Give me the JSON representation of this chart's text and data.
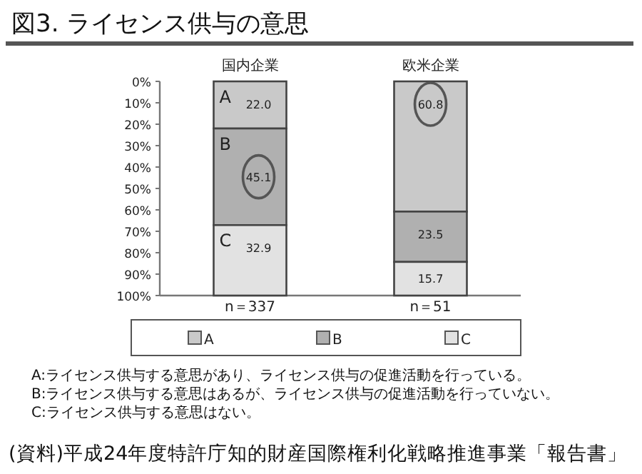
{
  "chart_data": {
    "type": "bar",
    "stacked": true,
    "title": "図3. ライセンス供与の意思",
    "categories": [
      "国内企業",
      "欧米企業"
    ],
    "series": [
      {
        "name": "A",
        "color": "#c9c9c9",
        "values": [
          22.0,
          60.8
        ],
        "value_labels": [
          "22.0",
          "60.8"
        ]
      },
      {
        "name": "B",
        "color": "#b0b0b0",
        "values": [
          45.1,
          23.5
        ],
        "value_labels": [
          "45.1",
          "23.5"
        ]
      },
      {
        "name": "C",
        "color": "#e2e2e2",
        "values": [
          32.9,
          15.7
        ],
        "value_labels": [
          "32.9",
          "15.7"
        ]
      }
    ],
    "ylim": [
      100,
      0
    ],
    "yticks": [
      {
        "value": 0,
        "label": "0%"
      },
      {
        "value": 10,
        "label": "10%"
      },
      {
        "value": 20,
        "label": "20%"
      },
      {
        "value": 30,
        "label": "30%"
      },
      {
        "value": 40,
        "label": "40%"
      },
      {
        "value": 50,
        "label": "50%"
      },
      {
        "value": 60,
        "label": "60%"
      },
      {
        "value": 70,
        "label": "70%"
      },
      {
        "value": 80,
        "label": "80%"
      },
      {
        "value": 90,
        "label": "90%"
      },
      {
        "value": 100,
        "label": "100%"
      }
    ],
    "legend": "bottom",
    "annotations": [
      "n＝337",
      "n＝51",
      "A:ライセンス供与する意思があり、ライセンス供与の促進活動を行っている。",
      "B:ライセンス供与する意思はあるが、ライセンス供与の促進活動を行っていない。",
      "C:ライセンス供与する意思はない。",
      "(資料)平成24年度特許庁知的財産国際権利化戦略推進事業「報告書」"
    ]
  }
}
